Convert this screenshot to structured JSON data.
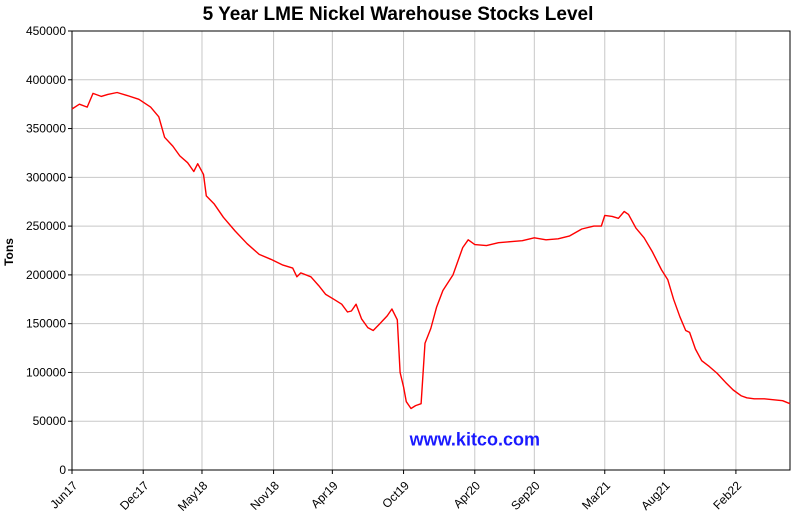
{
  "chart_data": {
    "type": "line",
    "title": "5 Year LME Nickel Warehouse Stocks Level",
    "ylabel": "Tons",
    "xlabel": "",
    "ylim": [
      0,
      450000
    ],
    "xlim": [
      "2017-06-01",
      "2022-06-20"
    ],
    "grid": true,
    "yticks": [
      "0",
      "50000",
      "100000",
      "150000",
      "200000",
      "250000",
      "300000",
      "350000",
      "400000",
      "450000"
    ],
    "xticks": [
      {
        "label": "Jun17",
        "date": "2017-06-01"
      },
      {
        "label": "Dec17",
        "date": "2017-12-01"
      },
      {
        "label": "May18",
        "date": "2018-05-01"
      },
      {
        "label": "Nov18",
        "date": "2018-11-01"
      },
      {
        "label": "Apr19",
        "date": "2019-04-01"
      },
      {
        "label": "Oct19",
        "date": "2019-10-01"
      },
      {
        "label": "Apr20",
        "date": "2020-04-01"
      },
      {
        "label": "Sep20",
        "date": "2020-09-01"
      },
      {
        "label": "Mar21",
        "date": "2021-03-01"
      },
      {
        "label": "Aug21",
        "date": "2021-08-01"
      },
      {
        "label": "Feb22",
        "date": "2022-02-01"
      }
    ],
    "series": [
      {
        "color": "#ff0000",
        "points": [
          [
            "2017-06-01",
            370000
          ],
          [
            "2017-06-20",
            375000
          ],
          [
            "2017-07-10",
            372000
          ],
          [
            "2017-07-25",
            386000
          ],
          [
            "2017-08-15",
            383000
          ],
          [
            "2017-09-01",
            385000
          ],
          [
            "2017-09-25",
            387000
          ],
          [
            "2017-10-20",
            384000
          ],
          [
            "2017-11-20",
            380000
          ],
          [
            "2017-12-20",
            372000
          ],
          [
            "2018-01-10",
            362000
          ],
          [
            "2018-01-25",
            341000
          ],
          [
            "2018-02-15",
            332000
          ],
          [
            "2018-03-05",
            322000
          ],
          [
            "2018-03-25",
            315000
          ],
          [
            "2018-04-10",
            306000
          ],
          [
            "2018-04-20",
            314000
          ],
          [
            "2018-05-05",
            303000
          ],
          [
            "2018-05-12",
            281000
          ],
          [
            "2018-06-01",
            273000
          ],
          [
            "2018-06-25",
            259000
          ],
          [
            "2018-07-25",
            245000
          ],
          [
            "2018-08-25",
            232000
          ],
          [
            "2018-09-25",
            221000
          ],
          [
            "2018-10-25",
            216000
          ],
          [
            "2018-11-25",
            210000
          ],
          [
            "2018-12-20",
            207000
          ],
          [
            "2018-12-31",
            198000
          ],
          [
            "2019-01-10",
            202000
          ],
          [
            "2019-02-05",
            198000
          ],
          [
            "2019-02-25",
            189000
          ],
          [
            "2019-03-15",
            180000
          ],
          [
            "2019-04-05",
            175000
          ],
          [
            "2019-04-25",
            170000
          ],
          [
            "2019-05-10",
            162000
          ],
          [
            "2019-05-20",
            163000
          ],
          [
            "2019-06-01",
            170000
          ],
          [
            "2019-06-15",
            155000
          ],
          [
            "2019-07-01",
            146000
          ],
          [
            "2019-07-15",
            143000
          ],
          [
            "2019-08-01",
            150000
          ],
          [
            "2019-08-20",
            158000
          ],
          [
            "2019-09-01",
            165000
          ],
          [
            "2019-09-15",
            154000
          ],
          [
            "2019-09-22",
            100000
          ],
          [
            "2019-10-01",
            85000
          ],
          [
            "2019-10-08",
            70000
          ],
          [
            "2019-10-20",
            63000
          ],
          [
            "2019-11-01",
            66000
          ],
          [
            "2019-11-15",
            68000
          ],
          [
            "2019-11-25",
            130000
          ],
          [
            "2019-12-10",
            145000
          ],
          [
            "2019-12-25",
            167000
          ],
          [
            "2020-01-10",
            184000
          ],
          [
            "2020-02-05",
            200000
          ],
          [
            "2020-03-01",
            228000
          ],
          [
            "2020-03-15",
            236000
          ],
          [
            "2020-04-01",
            231000
          ],
          [
            "2020-05-01",
            230000
          ],
          [
            "2020-06-01",
            233000
          ],
          [
            "2020-07-01",
            234000
          ],
          [
            "2020-08-01",
            235000
          ],
          [
            "2020-09-01",
            238000
          ],
          [
            "2020-10-01",
            236000
          ],
          [
            "2020-11-01",
            237000
          ],
          [
            "2020-12-01",
            240000
          ],
          [
            "2021-01-01",
            247000
          ],
          [
            "2021-02-01",
            250000
          ],
          [
            "2021-02-20",
            250000
          ],
          [
            "2021-03-01",
            261000
          ],
          [
            "2021-03-20",
            260000
          ],
          [
            "2021-04-05",
            258000
          ],
          [
            "2021-04-20",
            265000
          ],
          [
            "2021-05-01",
            262000
          ],
          [
            "2021-05-20",
            248000
          ],
          [
            "2021-06-10",
            238000
          ],
          [
            "2021-07-01",
            224000
          ],
          [
            "2021-07-25",
            205000
          ],
          [
            "2021-08-10",
            195000
          ],
          [
            "2021-08-25",
            175000
          ],
          [
            "2021-09-10",
            157000
          ],
          [
            "2021-09-25",
            143000
          ],
          [
            "2021-10-05",
            141000
          ],
          [
            "2021-10-20",
            124000
          ],
          [
            "2021-11-05",
            112000
          ],
          [
            "2021-11-25",
            106000
          ],
          [
            "2021-12-15",
            99000
          ],
          [
            "2022-01-05",
            90000
          ],
          [
            "2022-01-25",
            82000
          ],
          [
            "2022-02-15",
            76000
          ],
          [
            "2022-03-01",
            74000
          ],
          [
            "2022-03-20",
            73000
          ],
          [
            "2022-04-15",
            73000
          ],
          [
            "2022-05-10",
            72000
          ],
          [
            "2022-06-01",
            71000
          ],
          [
            "2022-06-20",
            68000
          ]
        ]
      }
    ],
    "annotations": [
      {
        "text": "www.kitco.com",
        "color": "#1a1aff",
        "x": "2020-04-01",
        "y": 25000
      }
    ]
  }
}
